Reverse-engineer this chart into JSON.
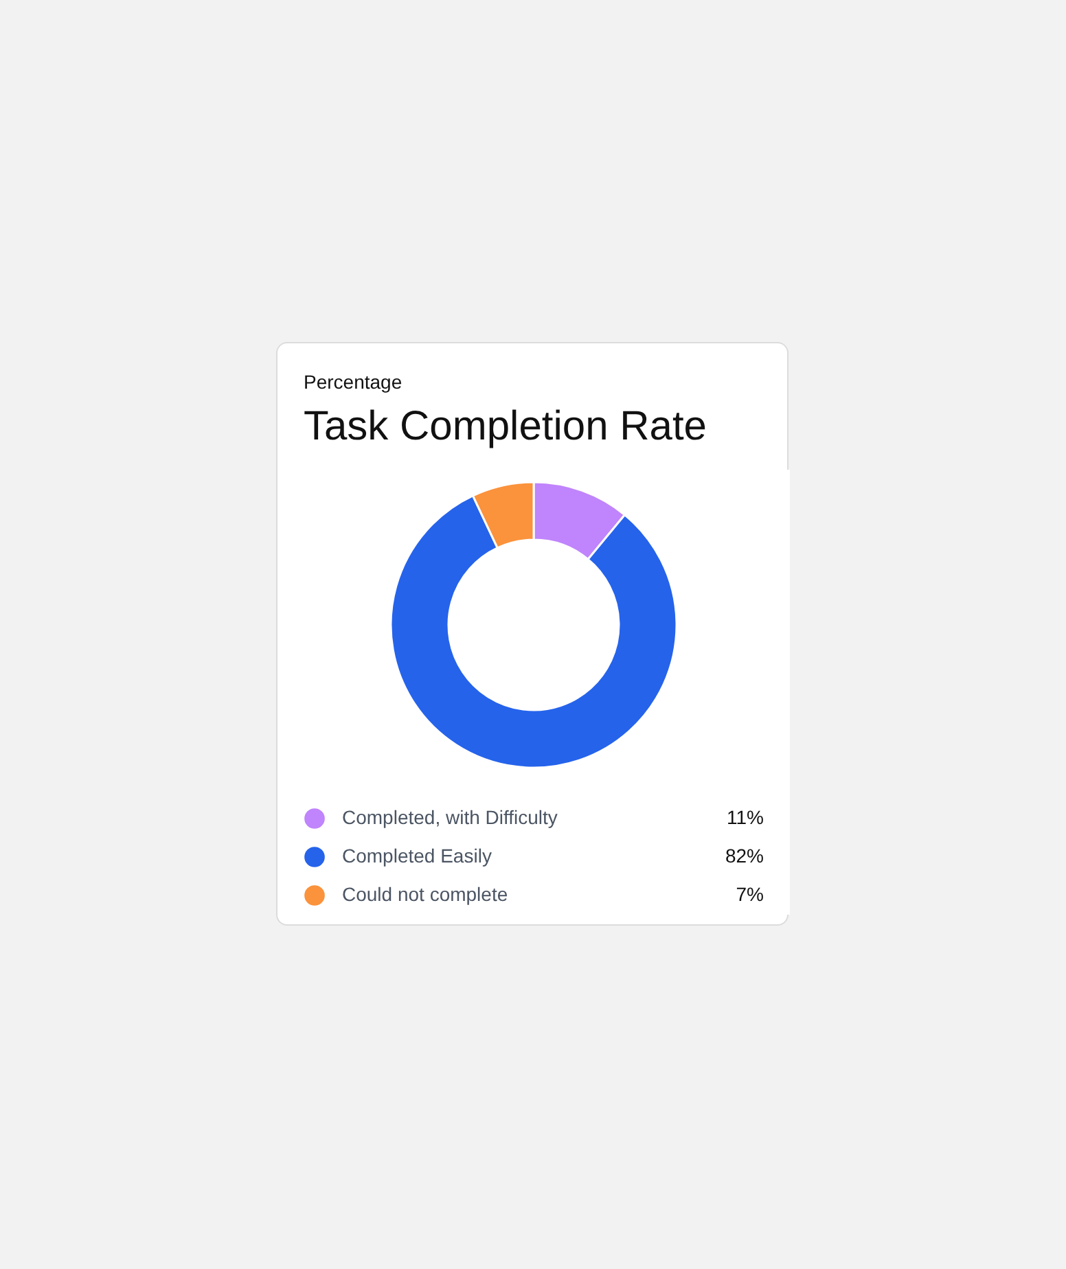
{
  "chart_data": {
    "type": "donut",
    "subtitle": "Percentage",
    "title": "Task Completion Rate",
    "categories": [
      "Completed, with Difficulty",
      "Completed Easily",
      "Could not complete"
    ],
    "values": [
      11,
      82,
      7
    ],
    "colors": [
      "#c084fc",
      "#2563eb",
      "#fb923c"
    ],
    "value_labels": [
      "11%",
      "82%",
      "7%"
    ],
    "legend": "bottom"
  }
}
